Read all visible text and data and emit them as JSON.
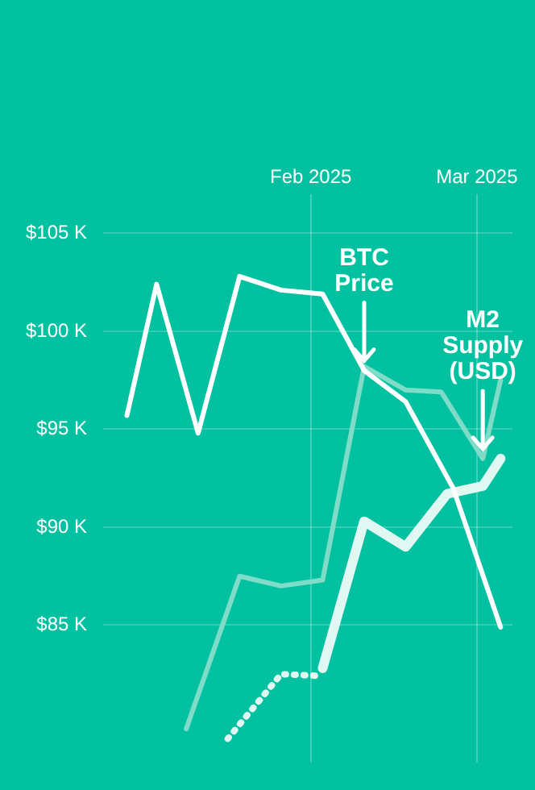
{
  "chart_data": {
    "type": "line",
    "xlim": [
      "2024-12-28",
      "2025-03-07"
    ],
    "ylim": [
      78,
      107
    ],
    "xticks": [
      {
        "value": "2025-02-01",
        "label": "Feb 2025"
      },
      {
        "value": "2025-03-01",
        "label": "Mar 2025"
      }
    ],
    "yticks": [
      {
        "value": 85,
        "label": "$85 K"
      },
      {
        "value": 90,
        "label": "$90 K"
      },
      {
        "value": 95,
        "label": "$95 K"
      },
      {
        "value": 100,
        "label": "$100 K"
      },
      {
        "value": 105,
        "label": "$105 K"
      }
    ],
    "grid": true,
    "legend": false,
    "marker": "none",
    "series": [
      {
        "color": "#ffffff",
        "x": [
          "2025-01-01",
          "2025-01-06",
          "2025-01-13",
          "2025-01-20",
          "2025-01-27",
          "2025-02-03",
          "2025-02-10",
          "2025-02-17",
          "2025-02-25",
          "2025-03-05"
        ],
        "values": [
          95.7,
          102.4,
          94.8,
          102.8,
          102.1,
          101.9,
          98.0,
          96.4,
          92.0,
          84.9
        ]
      },
      {
        "color": "#7fdcc8",
        "x": [
          "2025-01-11",
          "2025-01-20",
          "2025-01-27",
          "2025-02-03",
          "2025-02-10",
          "2025-02-17",
          "2025-02-23",
          "2025-03-02",
          "2025-03-05"
        ],
        "values": [
          79.7,
          87.5,
          87.0,
          87.3,
          98.2,
          97.0,
          96.9,
          93.5,
          97.5
        ]
      },
      {
        "color": "#e0f7f2",
        "line_style": "dotted",
        "x": [
          "2025-01-18",
          "2025-01-27",
          "2025-02-03"
        ],
        "values": [
          79.2,
          82.5,
          82.4
        ]
      },
      {
        "color": "#e0f7f2",
        "line_style": "solid",
        "x": [
          "2025-02-03",
          "2025-02-10",
          "2025-02-17",
          "2025-02-24",
          "2025-03-02",
          "2025-03-05"
        ],
        "values": [
          82.8,
          90.3,
          89.0,
          91.7,
          92.1,
          93.5
        ]
      }
    ],
    "annotations": [
      {
        "text": "BTC Price",
        "x": "2025-02-10",
        "y": 98.0
      },
      {
        "text": "M2 Supply (USD)",
        "x": "2025-03-02",
        "y": 93.5
      }
    ]
  }
}
